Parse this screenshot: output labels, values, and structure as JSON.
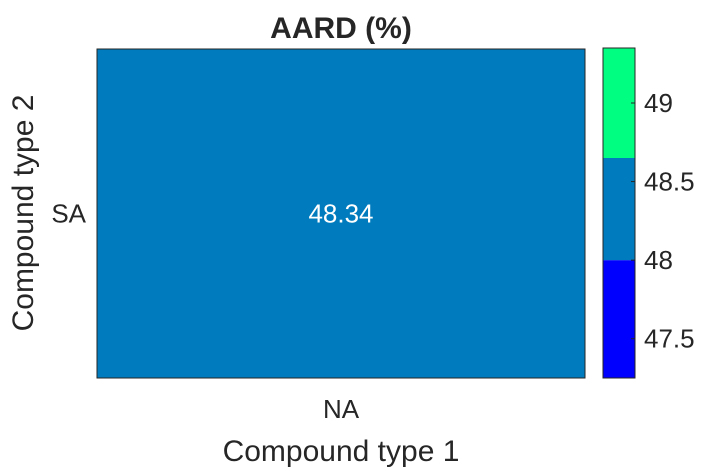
{
  "chart_data": {
    "type": "heatmap",
    "title": "AARD (%)",
    "xlabel": "Compound type 1",
    "ylabel": "Compound type 2",
    "x_categories": [
      "NA"
    ],
    "y_categories": [
      "SA"
    ],
    "cells": [
      {
        "x": "NA",
        "y": "SA",
        "value": 48.34,
        "label": "48.34",
        "color": "#007CBE"
      }
    ],
    "colorbar": {
      "range": [
        47.25,
        49.35
      ],
      "ticks": [
        {
          "value": 47.5,
          "label": "47.5"
        },
        {
          "value": 48,
          "label": "48"
        },
        {
          "value": 48.5,
          "label": "48.5"
        },
        {
          "value": 49,
          "label": "49"
        }
      ],
      "bins": [
        {
          "from": 47.25,
          "to": 48.0,
          "color": "#0000FF"
        },
        {
          "from": 48.0,
          "to": 48.65,
          "color": "#007CBE"
        },
        {
          "from": 48.65,
          "to": 49.35,
          "color": "#00FF80"
        }
      ]
    }
  },
  "colors": {
    "text": "#262626",
    "axis": "#262626",
    "cell_label": "#FFFFFF"
  }
}
